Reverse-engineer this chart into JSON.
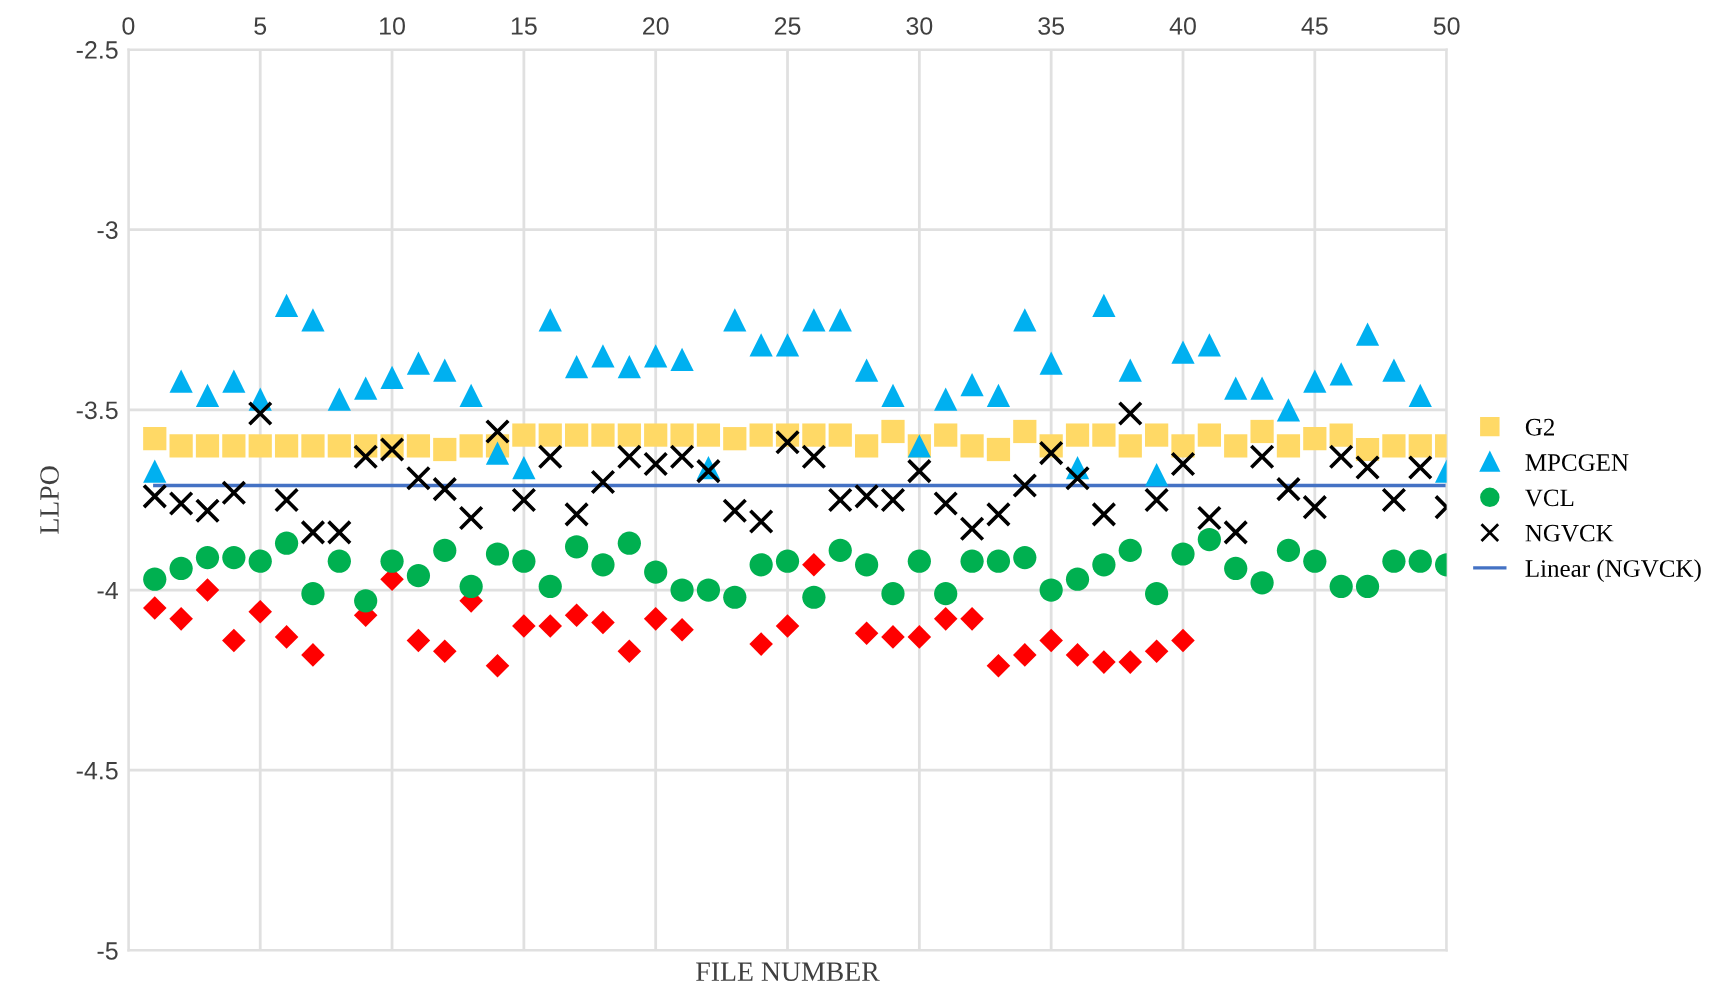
{
  "chart_data": {
    "type": "scatter",
    "xlabel": "FILE NUMBER",
    "ylabel": "LLPO",
    "x": [
      1,
      2,
      3,
      4,
      5,
      6,
      7,
      8,
      9,
      10,
      11,
      12,
      13,
      14,
      15,
      16,
      17,
      18,
      19,
      20,
      21,
      22,
      23,
      24,
      25,
      26,
      27,
      28,
      29,
      30,
      31,
      32,
      33,
      34,
      35,
      36,
      37,
      38,
      39,
      40,
      41,
      42,
      43,
      44,
      45,
      46,
      47,
      48,
      49,
      50
    ],
    "xlim": [
      0,
      50
    ],
    "xticks": [
      0,
      5,
      10,
      15,
      20,
      25,
      30,
      35,
      40,
      45,
      50
    ],
    "ylim": [
      -5,
      -2.5
    ],
    "yticks": [
      -5,
      -4.5,
      -4,
      -3.5,
      -3,
      -2.5
    ],
    "grid": true,
    "legend": "right",
    "series": [
      {
        "color": "#ff0000",
        "marker": "diamond",
        "values": [
          -4.05,
          -4.08,
          -4.0,
          -4.14,
          -4.06,
          -4.13,
          -4.18,
          null,
          -4.07,
          -3.97,
          -4.14,
          -4.17,
          -4.03,
          -4.21,
          -4.1,
          -4.1,
          -4.07,
          -4.09,
          -4.17,
          -4.08,
          -4.11,
          null,
          null,
          -4.15,
          -4.1,
          -3.93,
          null,
          -4.12,
          -4.13,
          -4.13,
          -4.08,
          -4.08,
          -4.21,
          -4.18,
          -4.14,
          -4.18,
          -4.2,
          -4.2,
          -4.17,
          -4.14,
          null,
          null,
          null,
          null,
          null,
          null,
          null,
          null,
          null,
          null
        ]
      },
      {
        "name": "G2",
        "color": "#ffd966",
        "marker": "square",
        "values": [
          -3.58,
          -3.6,
          -3.6,
          -3.6,
          -3.6,
          -3.6,
          -3.6,
          -3.6,
          -3.6,
          -3.6,
          -3.6,
          -3.61,
          -3.6,
          -3.6,
          -3.57,
          -3.57,
          -3.57,
          -3.57,
          -3.57,
          -3.57,
          -3.57,
          -3.57,
          -3.58,
          -3.57,
          -3.57,
          -3.57,
          -3.57,
          -3.6,
          -3.56,
          -3.6,
          -3.57,
          -3.6,
          -3.61,
          -3.56,
          -3.6,
          -3.57,
          -3.57,
          -3.6,
          -3.57,
          -3.6,
          -3.57,
          -3.6,
          -3.56,
          -3.6,
          -3.58,
          -3.57,
          -3.61,
          -3.6,
          -3.6,
          -3.6
        ]
      },
      {
        "name": "MPCGEN",
        "color": "#00b0f0",
        "marker": "triangle",
        "values": [
          -3.67,
          -3.42,
          -3.46,
          -3.42,
          -3.47,
          -3.21,
          -3.25,
          -3.47,
          -3.44,
          -3.41,
          -3.37,
          -3.39,
          -3.46,
          -3.62,
          -3.66,
          -3.25,
          -3.38,
          -3.35,
          -3.38,
          -3.35,
          -3.36,
          -3.66,
          -3.25,
          -3.32,
          -3.32,
          -3.25,
          -3.25,
          -3.39,
          -3.46,
          -3.6,
          -3.47,
          -3.43,
          -3.46,
          -3.25,
          -3.37,
          -3.66,
          -3.21,
          -3.39,
          -3.68,
          -3.34,
          -3.32,
          -3.44,
          -3.44,
          -3.5,
          -3.42,
          -3.4,
          -3.29,
          -3.39,
          -3.46,
          -3.67
        ]
      },
      {
        "name": "VCL",
        "color": "#00b050",
        "marker": "circle",
        "values": [
          -3.97,
          -3.94,
          -3.91,
          -3.91,
          -3.92,
          -3.87,
          -4.01,
          -3.92,
          -4.03,
          -3.92,
          -3.96,
          -3.89,
          -3.99,
          -3.9,
          -3.92,
          -3.99,
          -3.88,
          -3.93,
          -3.87,
          -3.95,
          -4.0,
          -4.0,
          -4.02,
          -3.93,
          -3.92,
          -4.02,
          -3.89,
          -3.93,
          -4.01,
          -3.92,
          -4.01,
          -3.92,
          -3.92,
          -3.91,
          -4.0,
          -3.97,
          -3.93,
          -3.89,
          -4.01,
          -3.9,
          -3.86,
          -3.94,
          -3.98,
          -3.89,
          -3.92,
          -3.99,
          -3.99,
          -3.92,
          -3.92,
          -3.93
        ]
      },
      {
        "name": "NGVCK",
        "color": "#000000",
        "marker": "cross",
        "values": [
          -3.74,
          -3.76,
          -3.78,
          -3.73,
          -3.51,
          -3.75,
          -3.84,
          -3.84,
          -3.63,
          -3.61,
          -3.69,
          -3.72,
          -3.8,
          -3.56,
          -3.75,
          -3.63,
          -3.79,
          -3.7,
          -3.63,
          -3.65,
          -3.63,
          -3.67,
          -3.78,
          -3.81,
          -3.59,
          -3.63,
          -3.75,
          -3.74,
          -3.75,
          -3.67,
          -3.76,
          -3.83,
          -3.79,
          -3.71,
          -3.62,
          -3.69,
          -3.79,
          -3.51,
          -3.75,
          -3.65,
          -3.8,
          -3.84,
          -3.63,
          -3.72,
          -3.77,
          -3.63,
          -3.66,
          -3.75,
          -3.66,
          -3.77
        ]
      },
      {
        "name": "Linear (NGVCK)",
        "type": "line",
        "color": "#4472c4",
        "marker": "none",
        "x": [
          1,
          50
        ],
        "values": [
          -3.71,
          -3.71
        ]
      }
    ]
  }
}
